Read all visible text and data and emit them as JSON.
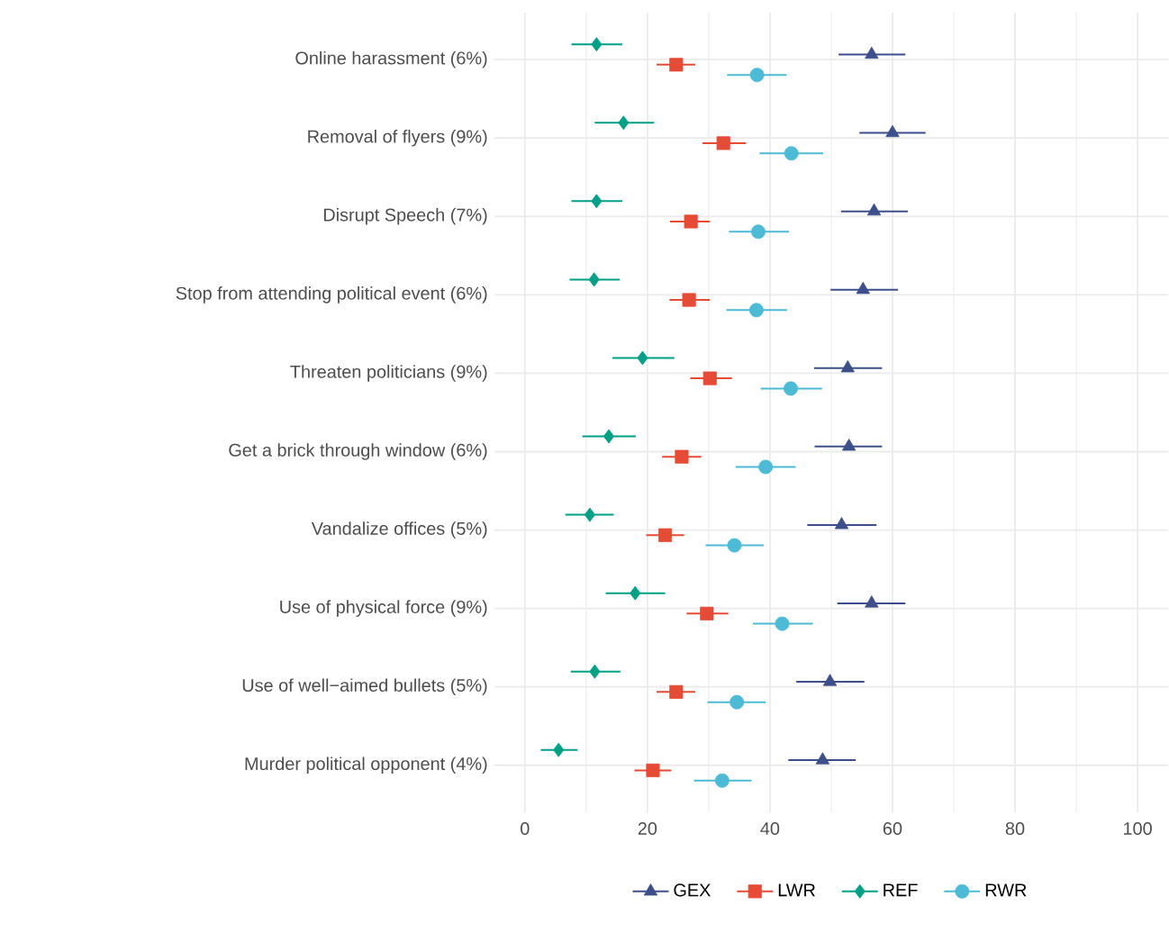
{
  "chart_data": {
    "type": "scatter",
    "orientation": "horizontal",
    "categories": [
      "Online harassment (6%)",
      "Removal of flyers (9%)",
      "Disrupt Speech (7%)",
      "Stop from attending political event (6%)",
      "Threaten politicians (9%)",
      "Get a brick through window (6%)",
      "Vandalize offices (5%)",
      "Use of physical force (9%)",
      "Use of well−aimed bullets (5%)",
      "Murder political opponent (4%)"
    ],
    "xlim": [
      -5,
      105
    ],
    "xticks": [
      0,
      20,
      40,
      60,
      80,
      100
    ],
    "grid": true,
    "legend": "bottom",
    "series": [
      {
        "name": "GEX",
        "color": "#3d4f8a",
        "marker": "triangle",
        "values": [
          56.6,
          60,
          57,
          55.2,
          52.7,
          52.9,
          51.7,
          56.6,
          49.8,
          48.6
        ],
        "errors": [
          [
            51.2,
            62.1
          ],
          [
            54.6,
            65.4
          ],
          [
            51.6,
            62.5
          ],
          [
            49.9,
            60.9
          ],
          [
            47.2,
            58.3
          ],
          [
            47.3,
            58.3
          ],
          [
            46.1,
            57.4
          ],
          [
            51,
            62.1
          ],
          [
            44.3,
            55.4
          ],
          [
            43,
            54
          ]
        ]
      },
      {
        "name": "LWR",
        "color": "#e64b35",
        "marker": "square",
        "values": [
          24.7,
          32.4,
          27.1,
          26.8,
          30.2,
          25.6,
          22.9,
          29.7,
          24.7,
          20.9
        ],
        "errors": [
          [
            21.5,
            27.8
          ],
          [
            29,
            36.1
          ],
          [
            23.7,
            30.2
          ],
          [
            23.6,
            30.2
          ],
          [
            27,
            33.8
          ],
          [
            22.4,
            28.8
          ],
          [
            19.8,
            26
          ],
          [
            26.4,
            33.2
          ],
          [
            21.5,
            27.8
          ],
          [
            17.9,
            23.9
          ]
        ]
      },
      {
        "name": "REF",
        "color": "#00a087",
        "marker": "diamond",
        "values": [
          11.7,
          16.1,
          11.7,
          11.3,
          19.2,
          13.7,
          10.6,
          18,
          11.4,
          5.5
        ],
        "errors": [
          [
            7.6,
            15.9
          ],
          [
            11.4,
            21.1
          ],
          [
            7.6,
            15.9
          ],
          [
            7.3,
            15.5
          ],
          [
            14.3,
            24.4
          ],
          [
            9.4,
            18.1
          ],
          [
            6.6,
            14.5
          ],
          [
            13.2,
            22.9
          ],
          [
            7.5,
            15.6
          ],
          [
            2.6,
            8.6
          ]
        ]
      },
      {
        "name": "RWR",
        "color": "#4dbbd5",
        "marker": "circle",
        "values": [
          37.9,
          43.5,
          38.1,
          37.8,
          43.4,
          39.3,
          34.2,
          42,
          34.6,
          32.2
        ],
        "errors": [
          [
            33,
            42.7
          ],
          [
            38.3,
            48.7
          ],
          [
            33.3,
            43.1
          ],
          [
            32.9,
            42.8
          ],
          [
            38.5,
            48.5
          ],
          [
            34.4,
            44.2
          ],
          [
            29.5,
            39
          ],
          [
            37.2,
            47
          ],
          [
            29.8,
            39.3
          ],
          [
            27.6,
            37
          ]
        ]
      }
    ]
  }
}
